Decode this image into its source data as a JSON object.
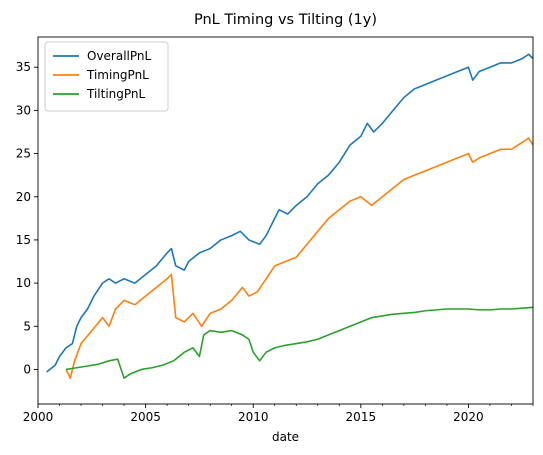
{
  "chart_data": {
    "type": "line",
    "title": "PnL Timing vs Tilting (1y)",
    "xlabel": "date",
    "ylabel": "",
    "xlim": [
      2000.0,
      2023.0
    ],
    "ylim": [
      -4.0,
      38.5
    ],
    "x_ticks": [
      2000,
      2005,
      2010,
      2015,
      2020
    ],
    "x_tick_labels": [
      "2000",
      "2005",
      "2010",
      "2015",
      "2020"
    ],
    "y_ticks": [
      0,
      5,
      10,
      15,
      20,
      25,
      30,
      35
    ],
    "y_tick_labels": [
      "0",
      "5",
      "10",
      "15",
      "20",
      "25",
      "30",
      "35"
    ],
    "grid": false,
    "legend_position": "upper-left",
    "series": [
      {
        "name": "OverallPnL",
        "color": "#1f77b4",
        "points": [
          [
            2000.4,
            -0.3
          ],
          [
            2000.8,
            0.5
          ],
          [
            2001.0,
            1.5
          ],
          [
            2001.3,
            2.5
          ],
          [
            2001.6,
            3.0
          ],
          [
            2001.8,
            5.0
          ],
          [
            2002.0,
            6.0
          ],
          [
            2002.3,
            7.0
          ],
          [
            2002.6,
            8.5
          ],
          [
            2003.0,
            10.0
          ],
          [
            2003.3,
            10.5
          ],
          [
            2003.6,
            10.0
          ],
          [
            2004.0,
            10.5
          ],
          [
            2004.5,
            10.0
          ],
          [
            2005.0,
            11.0
          ],
          [
            2005.5,
            12.0
          ],
          [
            2006.0,
            13.5
          ],
          [
            2006.2,
            14.0
          ],
          [
            2006.4,
            12.0
          ],
          [
            2006.8,
            11.5
          ],
          [
            2007.0,
            12.5
          ],
          [
            2007.5,
            13.5
          ],
          [
            2008.0,
            14.0
          ],
          [
            2008.5,
            15.0
          ],
          [
            2009.0,
            15.5
          ],
          [
            2009.4,
            16.0
          ],
          [
            2009.8,
            15.0
          ],
          [
            2010.3,
            14.5
          ],
          [
            2010.6,
            15.5
          ],
          [
            2010.9,
            17.0
          ],
          [
            2011.2,
            18.5
          ],
          [
            2011.6,
            18.0
          ],
          [
            2012.0,
            19.0
          ],
          [
            2012.5,
            20.0
          ],
          [
            2013.0,
            21.5
          ],
          [
            2013.5,
            22.5
          ],
          [
            2014.0,
            24.0
          ],
          [
            2014.5,
            26.0
          ],
          [
            2015.0,
            27.0
          ],
          [
            2015.3,
            28.5
          ],
          [
            2015.6,
            27.5
          ],
          [
            2016.0,
            28.5
          ],
          [
            2016.5,
            30.0
          ],
          [
            2017.0,
            31.5
          ],
          [
            2017.5,
            32.5
          ],
          [
            2018.0,
            33.0
          ],
          [
            2018.5,
            33.5
          ],
          [
            2019.0,
            34.0
          ],
          [
            2019.5,
            34.5
          ],
          [
            2020.0,
            35.0
          ],
          [
            2020.2,
            33.5
          ],
          [
            2020.5,
            34.5
          ],
          [
            2021.0,
            35.0
          ],
          [
            2021.5,
            35.5
          ],
          [
            2022.0,
            35.5
          ],
          [
            2022.5,
            36.0
          ],
          [
            2022.8,
            36.5
          ],
          [
            2023.0,
            36.0
          ]
        ]
      },
      {
        "name": "TimingPnL",
        "color": "#ff7f0e",
        "points": [
          [
            2001.3,
            0.0
          ],
          [
            2001.5,
            -1.0
          ],
          [
            2001.7,
            1.0
          ],
          [
            2002.0,
            3.0
          ],
          [
            2002.5,
            4.5
          ],
          [
            2003.0,
            6.0
          ],
          [
            2003.3,
            5.0
          ],
          [
            2003.6,
            7.0
          ],
          [
            2004.0,
            8.0
          ],
          [
            2004.5,
            7.5
          ],
          [
            2005.0,
            8.5
          ],
          [
            2005.5,
            9.5
          ],
          [
            2006.0,
            10.5
          ],
          [
            2006.2,
            11.0
          ],
          [
            2006.4,
            6.0
          ],
          [
            2006.8,
            5.5
          ],
          [
            2007.2,
            6.5
          ],
          [
            2007.6,
            5.0
          ],
          [
            2008.0,
            6.5
          ],
          [
            2008.5,
            7.0
          ],
          [
            2009.0,
            8.0
          ],
          [
            2009.5,
            9.5
          ],
          [
            2009.8,
            8.5
          ],
          [
            2010.2,
            9.0
          ],
          [
            2010.6,
            10.5
          ],
          [
            2011.0,
            12.0
          ],
          [
            2011.5,
            12.5
          ],
          [
            2012.0,
            13.0
          ],
          [
            2012.5,
            14.5
          ],
          [
            2013.0,
            16.0
          ],
          [
            2013.5,
            17.5
          ],
          [
            2014.0,
            18.5
          ],
          [
            2014.5,
            19.5
          ],
          [
            2015.0,
            20.0
          ],
          [
            2015.5,
            19.0
          ],
          [
            2016.0,
            20.0
          ],
          [
            2016.5,
            21.0
          ],
          [
            2017.0,
            22.0
          ],
          [
            2017.5,
            22.5
          ],
          [
            2018.0,
            23.0
          ],
          [
            2018.5,
            23.5
          ],
          [
            2019.0,
            24.0
          ],
          [
            2019.5,
            24.5
          ],
          [
            2020.0,
            25.0
          ],
          [
            2020.2,
            24.0
          ],
          [
            2020.5,
            24.5
          ],
          [
            2021.0,
            25.0
          ],
          [
            2021.5,
            25.5
          ],
          [
            2022.0,
            25.5
          ],
          [
            2022.5,
            26.3
          ],
          [
            2022.8,
            26.8
          ],
          [
            2023.0,
            26.0
          ]
        ]
      },
      {
        "name": "TiltingPnL",
        "color": "#2ca02c",
        "points": [
          [
            2001.3,
            0.0
          ],
          [
            2001.8,
            0.2
          ],
          [
            2002.3,
            0.4
          ],
          [
            2002.8,
            0.6
          ],
          [
            2003.3,
            1.0
          ],
          [
            2003.7,
            1.2
          ],
          [
            2004.0,
            -1.0
          ],
          [
            2004.3,
            -0.5
          ],
          [
            2004.8,
            0.0
          ],
          [
            2005.3,
            0.2
          ],
          [
            2005.8,
            0.5
          ],
          [
            2006.3,
            1.0
          ],
          [
            2006.8,
            2.0
          ],
          [
            2007.2,
            2.5
          ],
          [
            2007.5,
            1.5
          ],
          [
            2007.7,
            4.0
          ],
          [
            2008.0,
            4.5
          ],
          [
            2008.5,
            4.3
          ],
          [
            2009.0,
            4.5
          ],
          [
            2009.5,
            4.0
          ],
          [
            2009.8,
            3.5
          ],
          [
            2010.0,
            2.0
          ],
          [
            2010.3,
            1.0
          ],
          [
            2010.6,
            2.0
          ],
          [
            2011.0,
            2.5
          ],
          [
            2011.5,
            2.8
          ],
          [
            2012.0,
            3.0
          ],
          [
            2012.5,
            3.2
          ],
          [
            2013.0,
            3.5
          ],
          [
            2013.5,
            4.0
          ],
          [
            2014.0,
            4.5
          ],
          [
            2014.5,
            5.0
          ],
          [
            2015.0,
            5.5
          ],
          [
            2015.5,
            6.0
          ],
          [
            2016.0,
            6.2
          ],
          [
            2016.5,
            6.4
          ],
          [
            2017.0,
            6.5
          ],
          [
            2017.5,
            6.6
          ],
          [
            2018.0,
            6.8
          ],
          [
            2018.5,
            6.9
          ],
          [
            2019.0,
            7.0
          ],
          [
            2019.5,
            7.0
          ],
          [
            2020.0,
            7.0
          ],
          [
            2020.5,
            6.9
          ],
          [
            2021.0,
            6.9
          ],
          [
            2021.5,
            7.0
          ],
          [
            2022.0,
            7.0
          ],
          [
            2022.5,
            7.1
          ],
          [
            2023.0,
            7.2
          ]
        ]
      }
    ]
  }
}
